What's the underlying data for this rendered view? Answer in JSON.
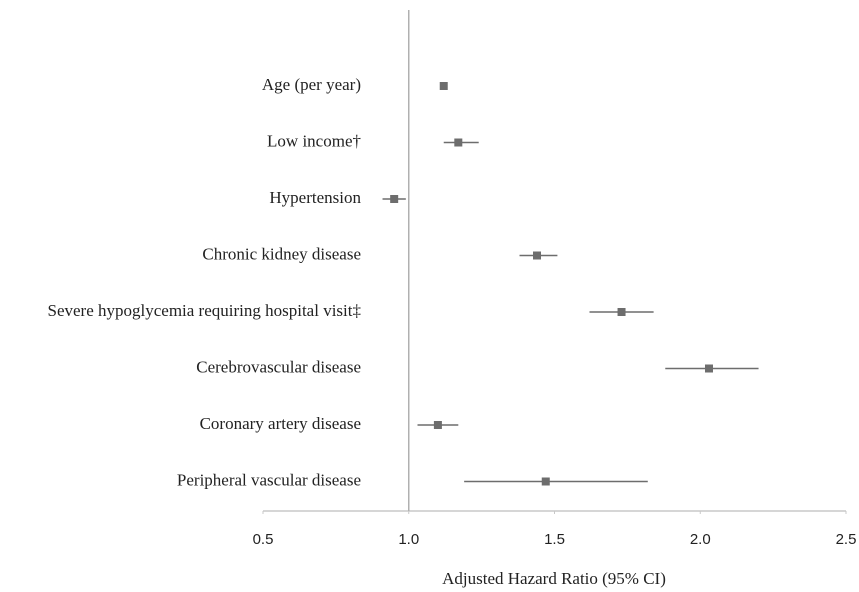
{
  "chart_data": {
    "type": "forest",
    "categories": [
      "Age (per year)",
      "Low income†",
      "Hypertension",
      "Chronic kidney disease",
      "Severe hypoglycemia requiring hospital visit‡",
      "Cerebrovascular disease",
      "Coronary artery disease",
      "Peripheral vascular disease"
    ],
    "values": [
      1.12,
      1.17,
      0.95,
      1.44,
      1.73,
      2.03,
      1.1,
      1.47
    ],
    "lower": [
      1.11,
      1.12,
      0.91,
      1.38,
      1.62,
      1.88,
      1.03,
      1.19
    ],
    "upper": [
      1.13,
      1.24,
      0.99,
      1.51,
      1.84,
      2.2,
      1.17,
      1.82
    ],
    "color": "#6d6d6d",
    "xlim": [
      0.5,
      2.5
    ],
    "xticks": [
      0.5,
      {
        "value": 1,
        "label": "1.0"
      },
      1.5,
      {
        "value": 2,
        "label": "2.0"
      },
      2.5
    ],
    "reference_line": 1,
    "x_label": "Adjusted Hazard Ratio (95% CI)"
  }
}
